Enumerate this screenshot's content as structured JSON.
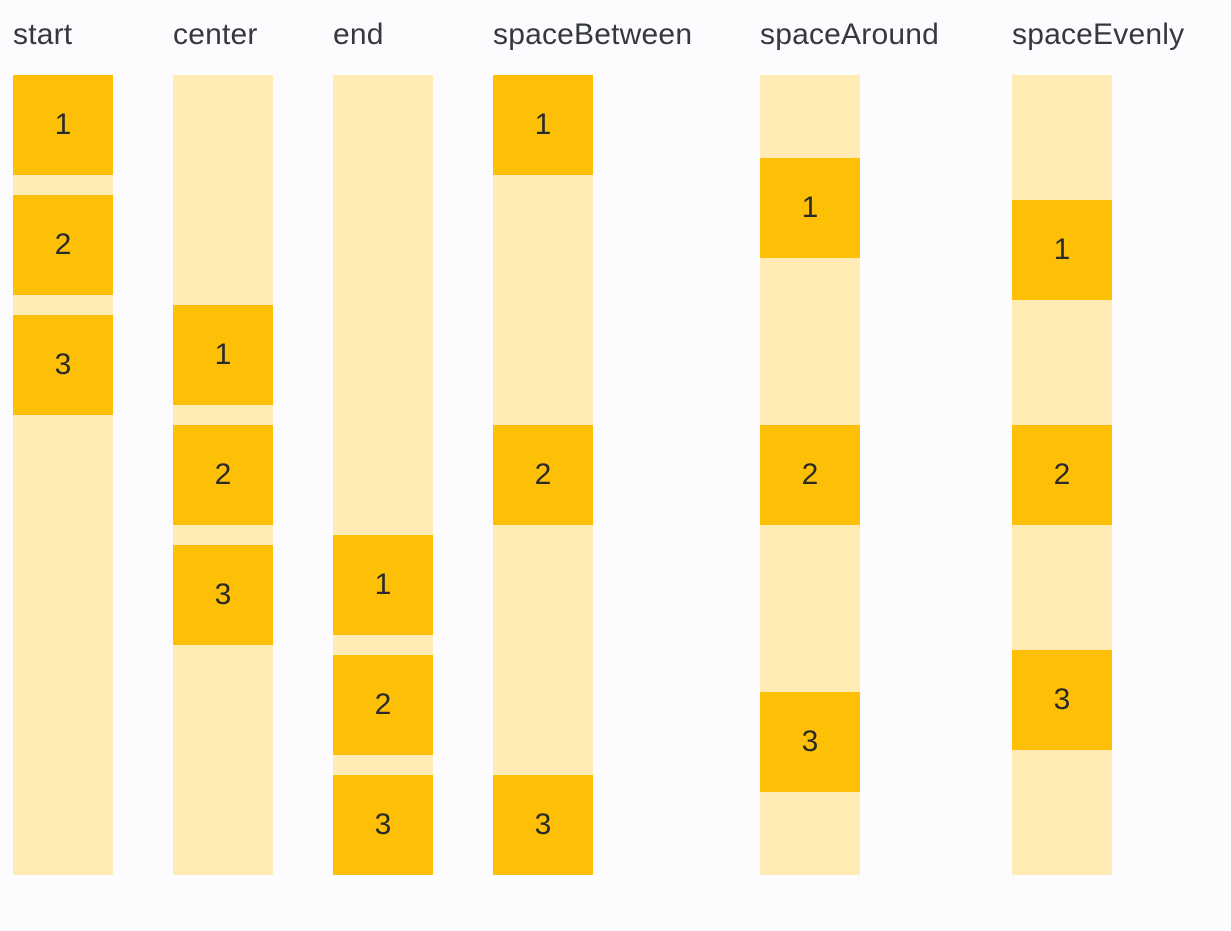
{
  "colors": {
    "page_background": "#FCFCFF",
    "track_background": "#FFEBB3",
    "box_background": "#FDC007",
    "label_text": "#35393F",
    "box_number_text": "#2A2A2A"
  },
  "sections": [
    {
      "label": "start",
      "justify": "start",
      "items": [
        "1",
        "2",
        "3"
      ]
    },
    {
      "label": "center",
      "justify": "center",
      "items": [
        "1",
        "2",
        "3"
      ]
    },
    {
      "label": "end",
      "justify": "end",
      "items": [
        "1",
        "2",
        "3"
      ]
    },
    {
      "label": "spaceBetween",
      "justify": "spaceBetween",
      "items": [
        "1",
        "2",
        "3"
      ]
    },
    {
      "label": "spaceAround",
      "justify": "spaceAround",
      "items": [
        "1",
        "2",
        "3"
      ]
    },
    {
      "label": "spaceEvenly",
      "justify": "spaceEvenly",
      "items": [
        "1",
        "2",
        "3"
      ]
    }
  ]
}
